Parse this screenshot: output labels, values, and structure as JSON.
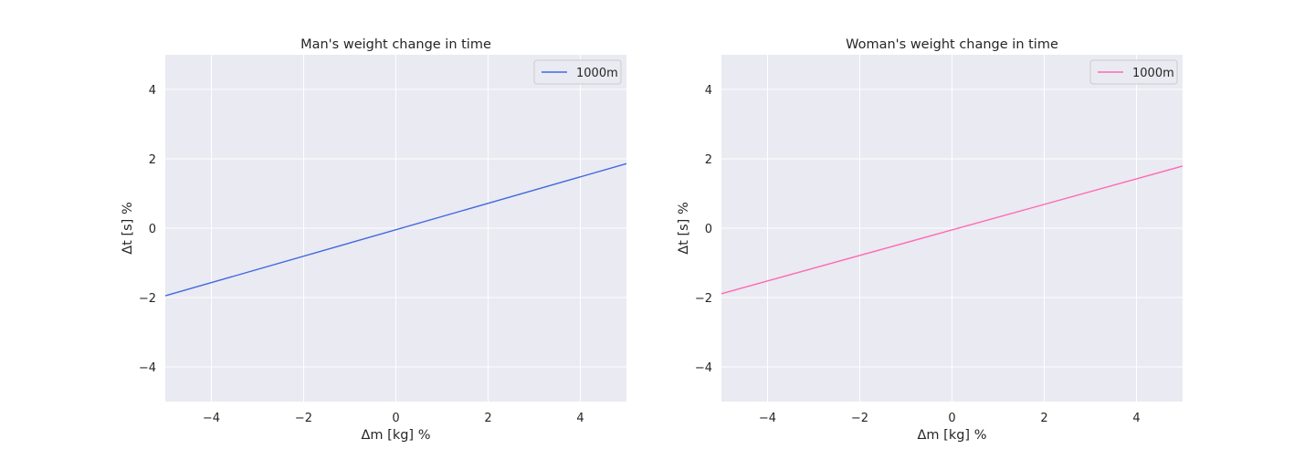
{
  "chart_data": [
    {
      "type": "line",
      "title": "Man's weight change in time",
      "xlabel": "Δm [kg] %",
      "ylabel": "Δt [s] %",
      "xlim": [
        -5,
        5
      ],
      "ylim": [
        -5,
        5
      ],
      "xticks": [
        -4,
        -2,
        0,
        2,
        4
      ],
      "yticks": [
        -4,
        -2,
        0,
        2,
        4
      ],
      "xtick_labels": [
        "−4",
        "−2",
        "0",
        "2",
        "4"
      ],
      "ytick_labels": [
        "−4",
        "−2",
        "0",
        "2",
        "4"
      ],
      "grid": true,
      "legend_position": "top-right",
      "series": [
        {
          "name": "1000m",
          "color": "#4169e1",
          "x": [
            -5,
            5
          ],
          "y": [
            -1.95,
            1.86
          ]
        }
      ]
    },
    {
      "type": "line",
      "title": "Woman's weight change in time",
      "xlabel": "Δm [kg] %",
      "ylabel": "Δt [s] %",
      "xlim": [
        -5,
        5
      ],
      "ylim": [
        -5,
        5
      ],
      "xticks": [
        -4,
        -2,
        0,
        2,
        4
      ],
      "yticks": [
        -4,
        -2,
        0,
        2,
        4
      ],
      "xtick_labels": [
        "−4",
        "−2",
        "0",
        "2",
        "4"
      ],
      "ytick_labels": [
        "−4",
        "−2",
        "0",
        "2",
        "4"
      ],
      "grid": true,
      "legend_position": "top-right",
      "series": [
        {
          "name": "1000m",
          "color": "#ff69b4",
          "x": [
            -5,
            5
          ],
          "y": [
            -1.89,
            1.79
          ]
        }
      ]
    }
  ],
  "colors": {
    "plot_background": "#eaeaf2",
    "grid": "#ffffff",
    "text": "#262626",
    "legend_border": "#cccccc"
  }
}
